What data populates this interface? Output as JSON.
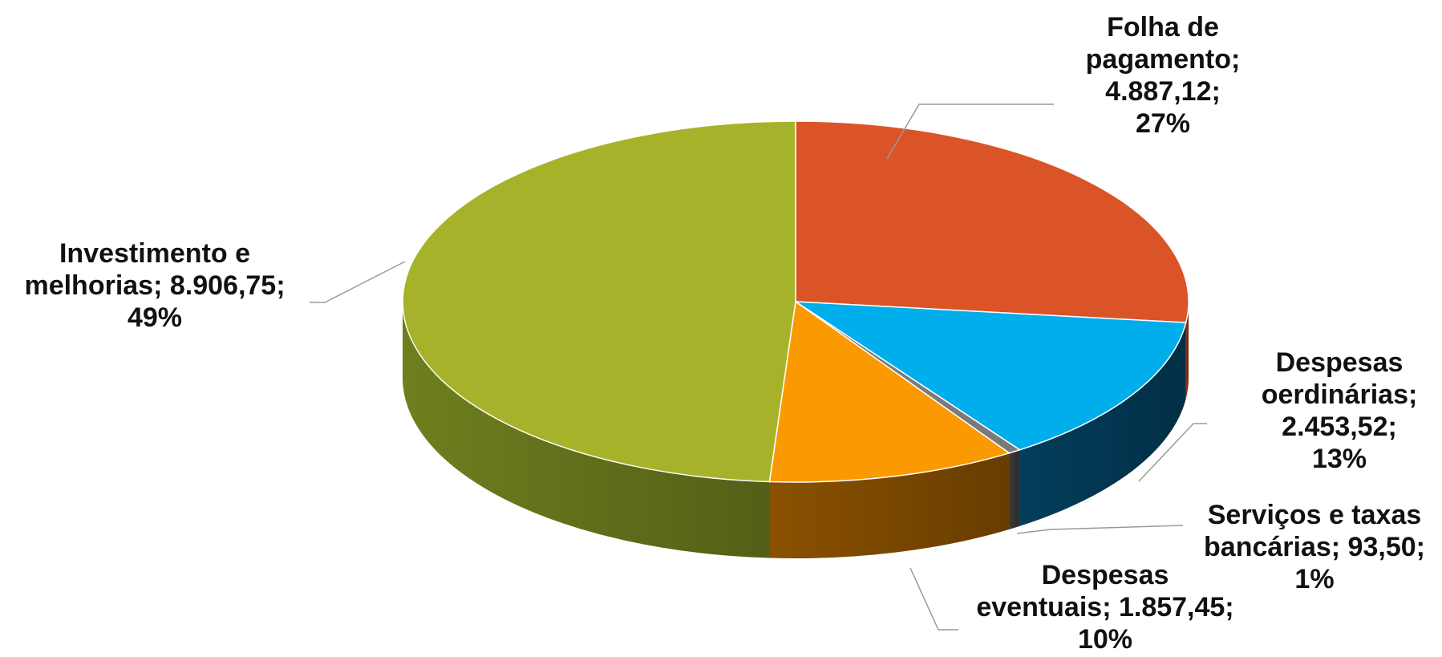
{
  "chart_data": {
    "type": "pie",
    "style": "3d",
    "slices": [
      {
        "label": "Folha de pagamento",
        "value": 4887.12,
        "value_text": "4.887,12",
        "percent_text": "27%",
        "color": "#DA5427",
        "side_color": "#8E3214"
      },
      {
        "label": "Despesas oerdinárias",
        "value": 2453.52,
        "value_text": "2.453,52",
        "percent_text": "13%",
        "color": "#00AEEB",
        "side_color": "#033E5C"
      },
      {
        "label": "Serviços e taxas bancárias",
        "value": 93.5,
        "value_text": "93,50",
        "percent_text": "1%",
        "color": "#7A7A7A",
        "side_color": "#3A3A3A"
      },
      {
        "label": "Despesas eventuais",
        "value": 1857.45,
        "value_text": "1.857,45",
        "percent_text": "10%",
        "color": "#FA9A00",
        "side_color": "#8A5100"
      },
      {
        "label": "Investimento e melhorias",
        "value": 8906.75,
        "value_text": "8.906,75",
        "percent_text": "49%",
        "color": "#A6B32A",
        "side_color": "#6E7F1E"
      }
    ],
    "labels": {
      "folha": [
        "Folha de",
        "pagamento;",
        "4.887,12;",
        "27%"
      ],
      "ordinarias": [
        "Despesas",
        "oerdinárias;",
        "2.453,52;",
        "13%"
      ],
      "servicos": [
        "Serviços e taxas",
        "bancárias; 93,50;",
        "1%"
      ],
      "eventuais": [
        "Despesas",
        "eventuais; 1.857,45;",
        "10%"
      ],
      "investimento": [
        "Investimento e",
        "melhorias; 8.906,75;",
        "49%"
      ]
    }
  }
}
